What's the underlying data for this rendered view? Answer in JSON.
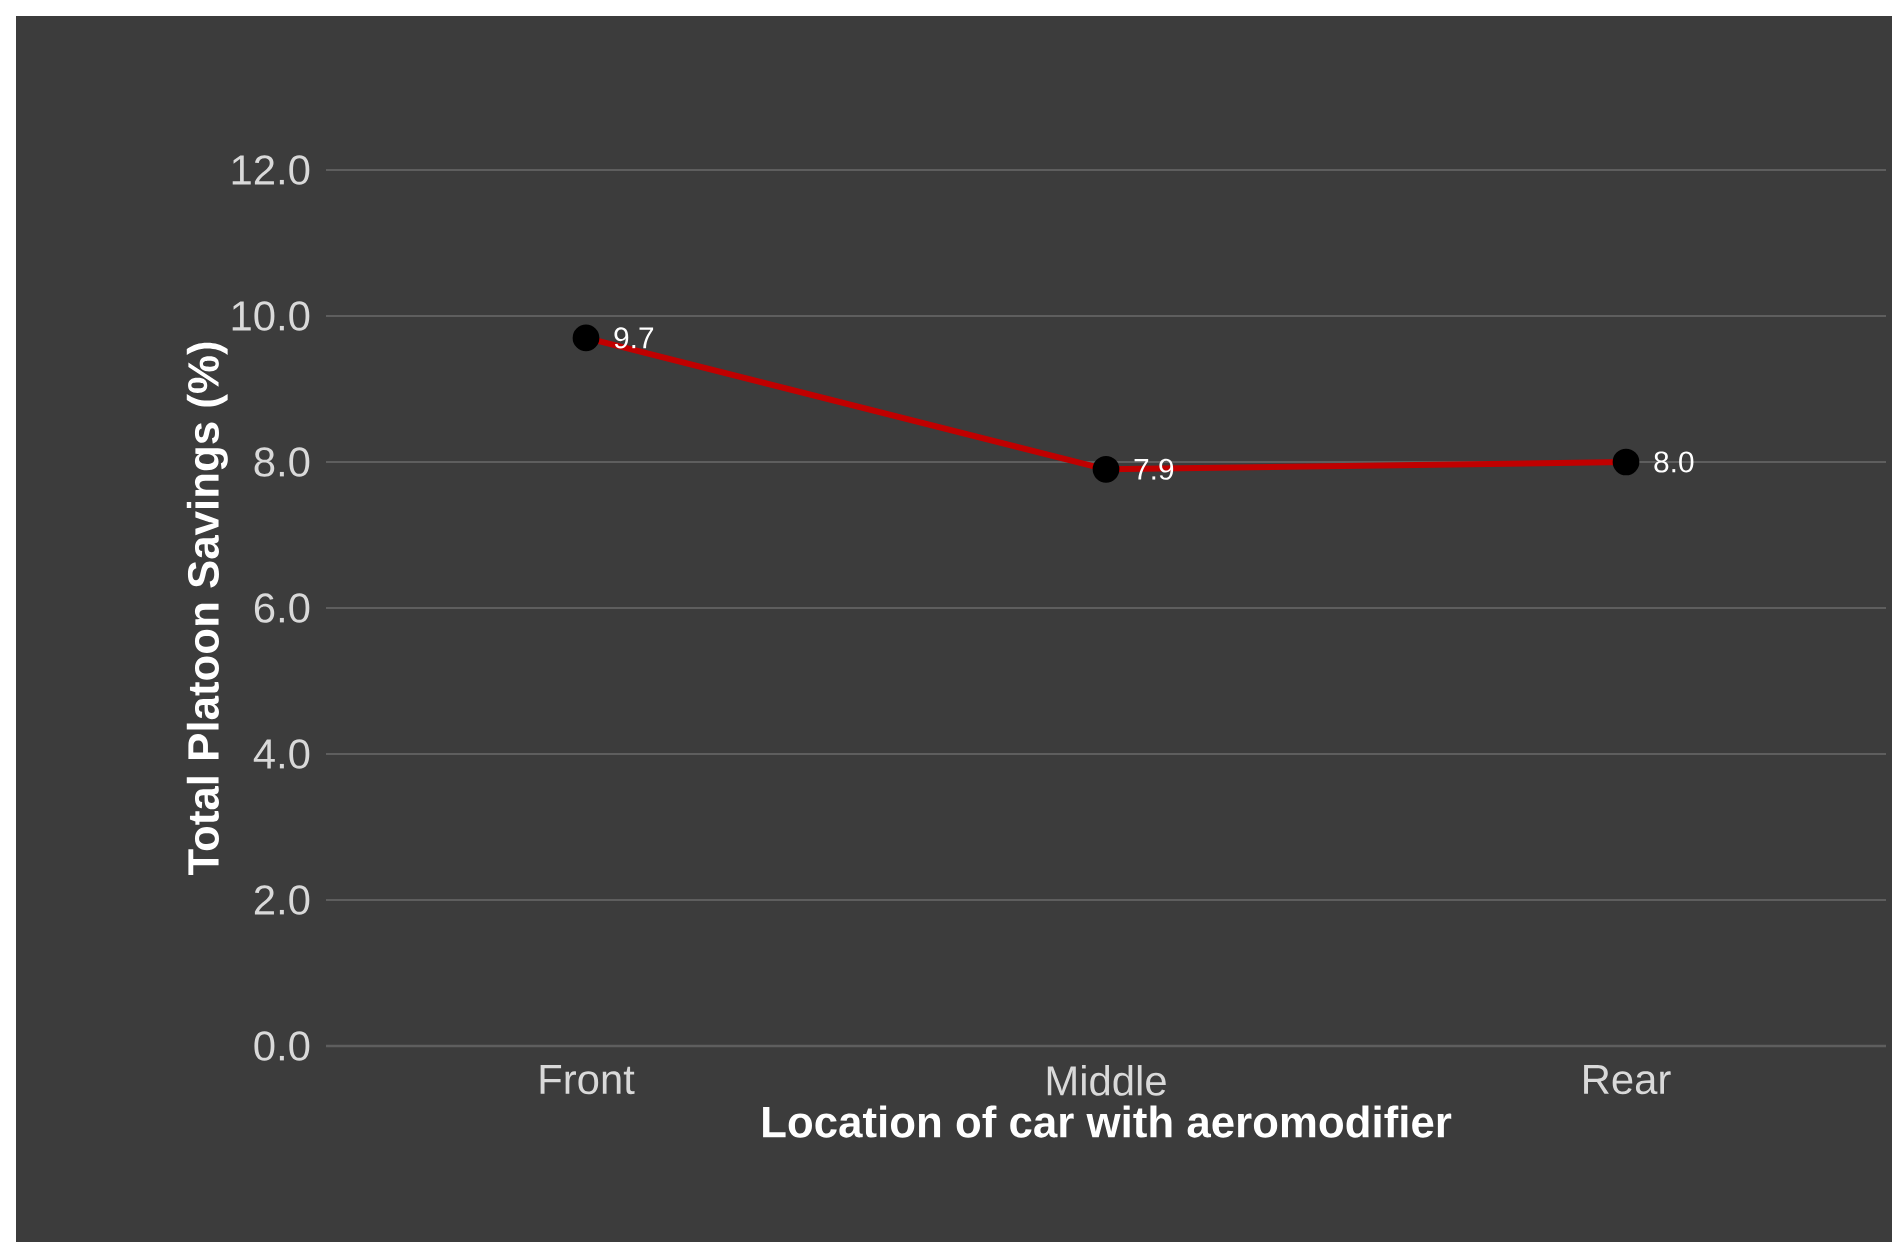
{
  "chart_data": {
    "type": "line",
    "xlabel": "Location of car with aeromodifier",
    "ylabel": "Total Platoon Savings (%)",
    "categories": [
      "Front",
      "Middle",
      "Rear"
    ],
    "values": [
      9.7,
      7.9,
      8.0
    ],
    "color": "#c00000",
    "ylim": [
      0,
      12
    ],
    "yticks": [
      {
        "value": 0,
        "label": "0.0"
      },
      {
        "value": 2,
        "label": "2.0"
      },
      {
        "value": 4,
        "label": "4.0"
      },
      {
        "value": 6,
        "label": "6.0"
      },
      {
        "value": 8,
        "label": "8.0"
      },
      {
        "value": 10,
        "label": "10.0"
      },
      {
        "value": 12,
        "label": "12.0"
      }
    ],
    "value_labels": [
      "9.7",
      "7.9",
      "8.0"
    ],
    "grid": "y",
    "marker": "circle",
    "line_style": "solid"
  }
}
